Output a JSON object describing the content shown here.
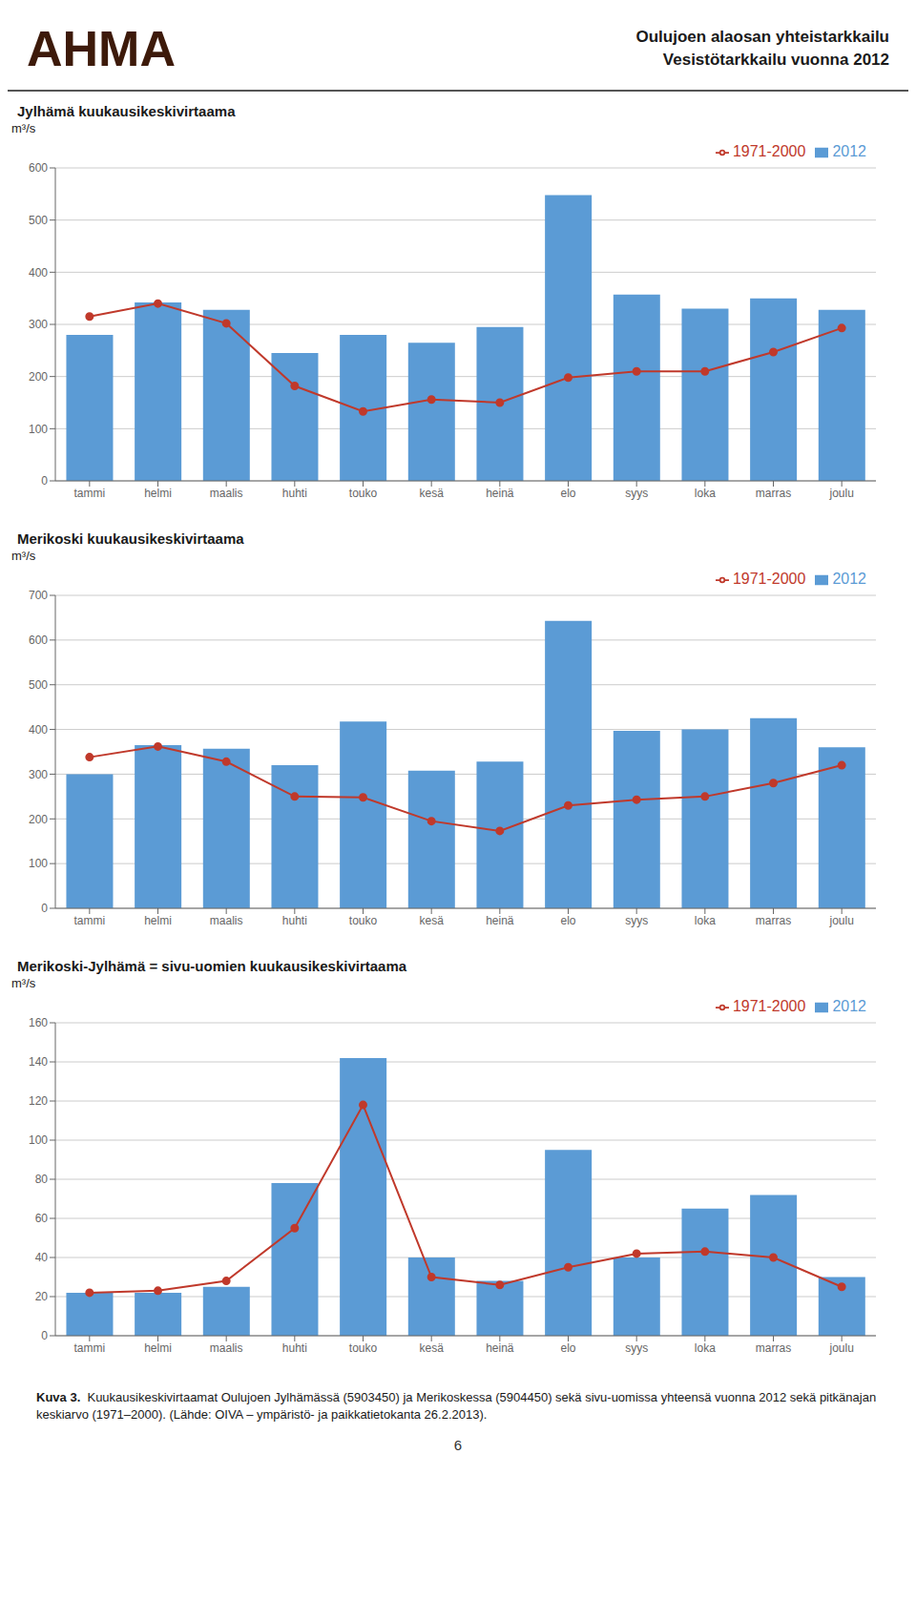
{
  "header": [
    "AHMA",
    "Oulujoen alaosan yhteistarkkailu",
    "Vesistötarkkailu vuonna 2012"
  ],
  "caption": [
    "Kuva 3.",
    "  Kuukausikeskivirtaamat Oulujoen Jylhämässä (5903450) ja Merikoskessa (5904450) sekä sivu-uomissa yhteensä vuonna 2012 sekä pitkänajan keskiarvo (1971–2000). (Lähde: OIVA – ympäristö- ja paikkatietokanta 26.2.2013)."
  ],
  "page_number": "6",
  "chart_data": [
    {
      "type": "bar",
      "title": "Jylhämä kuukausikeskivirtaama",
      "y_label": "m³/s",
      "categories": [
        "tammi",
        "helmi",
        "maalis",
        "huhti",
        "touko",
        "kesä",
        "heinä",
        "elo",
        "syys",
        "loka",
        "marras",
        "joulu"
      ],
      "series": [
        {
          "name": "2012",
          "type": "bar",
          "color": "#5b9bd5",
          "values": [
            280,
            342,
            328,
            245,
            280,
            265,
            295,
            548,
            357,
            330,
            350,
            328
          ]
        },
        {
          "name": "1971-2000",
          "type": "line",
          "color": "#c0392b",
          "marker": "circle",
          "values": [
            315,
            340,
            302,
            182,
            133,
            156,
            150,
            198,
            210,
            210,
            247,
            293
          ]
        }
      ],
      "ylim": [
        0,
        600
      ],
      "yticks": [
        0,
        100,
        200,
        300,
        400,
        500,
        600
      ],
      "grid": true,
      "legend": "top right"
    },
    {
      "type": "bar",
      "title": "Merikoski kuukausikeskivirtaama",
      "y_label": "m³/s",
      "categories": [
        "tammi",
        "helmi",
        "maalis",
        "huhti",
        "touko",
        "kesä",
        "heinä",
        "elo",
        "syys",
        "loka",
        "marras",
        "joulu"
      ],
      "series": [
        {
          "name": "2012",
          "type": "bar",
          "color": "#5b9bd5",
          "values": [
            300,
            365,
            357,
            320,
            418,
            308,
            328,
            643,
            397,
            400,
            425,
            360
          ]
        },
        {
          "name": "1971-2000",
          "type": "line",
          "color": "#c0392b",
          "marker": "circle",
          "values": [
            338,
            362,
            328,
            250,
            248,
            195,
            173,
            230,
            243,
            250,
            280,
            320
          ]
        }
      ],
      "ylim": [
        0,
        700
      ],
      "yticks": [
        0,
        100,
        200,
        300,
        400,
        500,
        600,
        700
      ],
      "grid": true,
      "legend": "top right"
    },
    {
      "type": "bar",
      "title": "Merikoski-Jylhämä = sivu-uomien kuukausikeskivirtaama",
      "y_label": "m³/s",
      "categories": [
        "tammi",
        "helmi",
        "maalis",
        "huhti",
        "touko",
        "kesä",
        "heinä",
        "elo",
        "syys",
        "loka",
        "marras",
        "joulu"
      ],
      "series": [
        {
          "name": "2012",
          "type": "bar",
          "color": "#5b9bd5",
          "values": [
            22,
            22,
            25,
            78,
            142,
            40,
            28,
            95,
            40,
            65,
            72,
            30
          ]
        },
        {
          "name": "1971-2000",
          "type": "line",
          "color": "#c0392b",
          "marker": "circle",
          "values": [
            22,
            23,
            28,
            55,
            118,
            30,
            26,
            35,
            42,
            43,
            40,
            25
          ]
        }
      ],
      "ylim": [
        0,
        160
      ],
      "yticks": [
        0,
        20,
        40,
        60,
        80,
        100,
        120,
        140,
        160
      ],
      "grid": true,
      "legend": "top right"
    }
  ]
}
